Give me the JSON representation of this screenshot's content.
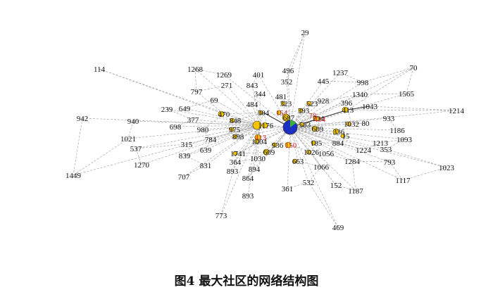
{
  "caption": "图4  最大社区的网络结构图",
  "colors": {
    "edge": "#a8a8a8",
    "edge_dark": "#333333",
    "node_fill": "#f2c500",
    "node_stroke": "#333333",
    "hub_fill": "#1b2fc4",
    "hub_accent": "#3bb23b",
    "label": "#111111",
    "label_red": "#d42020"
  },
  "nodes": [
    {
      "id": "29",
      "label": "29"
    },
    {
      "id": "114",
      "label": "114"
    },
    {
      "id": "1268",
      "label": "1268"
    },
    {
      "id": "1269",
      "label": "1269"
    },
    {
      "id": "401",
      "label": "401"
    },
    {
      "id": "496",
      "label": "496"
    },
    {
      "id": "1237",
      "label": "1237"
    },
    {
      "id": "70",
      "label": "70"
    },
    {
      "id": "998",
      "label": "998"
    },
    {
      "id": "843",
      "label": "843"
    },
    {
      "id": "271",
      "label": "271"
    },
    {
      "id": "352",
      "label": "352"
    },
    {
      "id": "445",
      "label": "445"
    },
    {
      "id": "1565",
      "label": "1565"
    },
    {
      "id": "797",
      "label": "797"
    },
    {
      "id": "344",
      "label": "344"
    },
    {
      "id": "1340",
      "label": "1340"
    },
    {
      "id": "69",
      "label": "69"
    },
    {
      "id": "481",
      "label": "481"
    },
    {
      "id": "396",
      "label": "396"
    },
    {
      "id": "1043",
      "label": "1043"
    },
    {
      "id": "1214",
      "label": "1214"
    },
    {
      "id": "239",
      "label": "239"
    },
    {
      "id": "649",
      "label": "649"
    },
    {
      "id": "484",
      "label": "484"
    },
    {
      "id": "323",
      "label": "323"
    },
    {
      "id": "928",
      "label": "928"
    },
    {
      "id": "523",
      "label": "523"
    },
    {
      "id": "413",
      "label": "413"
    },
    {
      "id": "942",
      "label": "942"
    },
    {
      "id": "470",
      "label": "470"
    },
    {
      "id": "154",
      "label": "154"
    },
    {
      "id": "304",
      "label": "304"
    },
    {
      "id": "334",
      "label": "334"
    },
    {
      "id": "393",
      "label": "393"
    },
    {
      "id": "933",
      "label": "933"
    },
    {
      "id": "940",
      "label": "940"
    },
    {
      "id": "377",
      "label": "377"
    },
    {
      "id": "848",
      "label": "848"
    },
    {
      "id": "1",
      "label": "1"
    },
    {
      "id": "176",
      "label": "176"
    },
    {
      "id": "78",
      "label": "78"
    },
    {
      "id": "434",
      "label": "434"
    },
    {
      "id": "1032",
      "label": "1032"
    },
    {
      "id": "80",
      "label": "80"
    },
    {
      "id": "698",
      "label": "698"
    },
    {
      "id": "980",
      "label": "980"
    },
    {
      "id": "975",
      "label": "975"
    },
    {
      "id": "687",
      "label": "687"
    },
    {
      "id": "583",
      "label": "583"
    },
    {
      "id": "609",
      "label": "609"
    },
    {
      "id": "336",
      "label": "336"
    },
    {
      "id": "1186",
      "label": "1186"
    },
    {
      "id": "1021",
      "label": "1021"
    },
    {
      "id": "784",
      "label": "784"
    },
    {
      "id": "898",
      "label": "898"
    },
    {
      "id": "315",
      "label": "315"
    },
    {
      "id": "413b",
      "label": "413"
    },
    {
      "id": "1004",
      "label": "1004"
    },
    {
      "id": "936",
      "label": "936"
    },
    {
      "id": "150",
      "label": "150"
    },
    {
      "id": "185",
      "label": "185"
    },
    {
      "id": "884",
      "label": "884"
    },
    {
      "id": "1093",
      "label": "1093"
    },
    {
      "id": "537",
      "label": "537"
    },
    {
      "id": "639",
      "label": "639"
    },
    {
      "id": "1741",
      "label": "1741"
    },
    {
      "id": "609b",
      "label": "609"
    },
    {
      "id": "1026",
      "label": "1026"
    },
    {
      "id": "1056",
      "label": "1056"
    },
    {
      "id": "1213",
      "label": "1213"
    },
    {
      "id": "1224",
      "label": "1224"
    },
    {
      "id": "353",
      "label": "353"
    },
    {
      "id": "839",
      "label": "839"
    },
    {
      "id": "1030",
      "label": "1030"
    },
    {
      "id": "364",
      "label": "364"
    },
    {
      "id": "663",
      "label": "663"
    },
    {
      "id": "1284",
      "label": "1284"
    },
    {
      "id": "793",
      "label": "793"
    },
    {
      "id": "1270",
      "label": "1270"
    },
    {
      "id": "831",
      "label": "831"
    },
    {
      "id": "893",
      "label": "893"
    },
    {
      "id": "894",
      "label": "894"
    },
    {
      "id": "1066",
      "label": "1066"
    },
    {
      "id": "1023",
      "label": "1023"
    },
    {
      "id": "1449",
      "label": "1449"
    },
    {
      "id": "707",
      "label": "707"
    },
    {
      "id": "864",
      "label": "864"
    },
    {
      "id": "532",
      "label": "532"
    },
    {
      "id": "152",
      "label": "152"
    },
    {
      "id": "1117",
      "label": "1117"
    },
    {
      "id": "361",
      "label": "361"
    },
    {
      "id": "1187",
      "label": "1187"
    },
    {
      "id": "893b",
      "label": "893"
    },
    {
      "id": "773",
      "label": "773"
    },
    {
      "id": "469",
      "label": "469"
    },
    {
      "id": "15",
      "label": "15"
    },
    {
      "id": "hub",
      "label": ""
    }
  ]
}
